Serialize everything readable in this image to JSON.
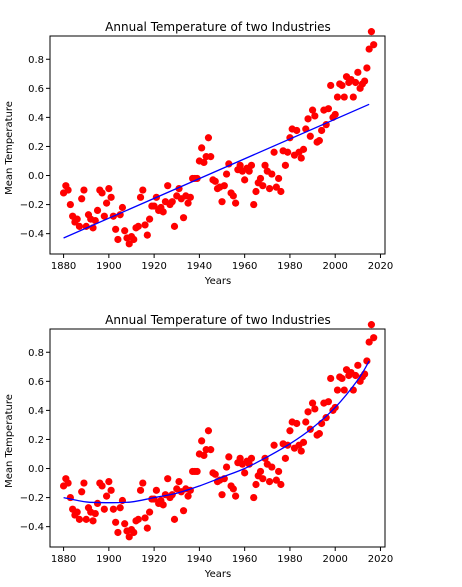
{
  "figure": {
    "background": "#ffffff"
  },
  "chart_data": [
    {
      "type": "scatter",
      "title": "Annual Temperature of two Industries",
      "xlabel": "Years",
      "ylabel": "Mean Temperature",
      "xlim": [
        1874,
        2022
      ],
      "ylim": [
        -0.54,
        0.96
      ],
      "xticks": [
        1880,
        1900,
        1920,
        1940,
        1960,
        1980,
        2000,
        2020
      ],
      "yticks": [
        -0.4,
        -0.2,
        0.0,
        0.2,
        0.4,
        0.6,
        0.8
      ],
      "ytick_labels": [
        "−0.4",
        "−0.2",
        "0.0",
        "0.2",
        "0.4",
        "0.6",
        "0.8"
      ],
      "grid": false,
      "points_color": "#ff0000",
      "fit_color": "#0000ff",
      "fit": {
        "kind": "linear",
        "x": [
          1880,
          2015
        ],
        "y": [
          -0.43,
          0.49
        ]
      }
    },
    {
      "type": "scatter",
      "title": "Annual Temperature of two Industries",
      "xlabel": "Years",
      "ylabel": "Mean Temperature",
      "xlim": [
        1874,
        2022
      ],
      "ylim": [
        -0.54,
        0.96
      ],
      "xticks": [
        1880,
        1900,
        1920,
        1940,
        1960,
        1980,
        2000,
        2020
      ],
      "yticks": [
        -0.4,
        -0.2,
        0.0,
        0.2,
        0.4,
        0.6,
        0.8
      ],
      "ytick_labels": [
        "−0.4",
        "−0.2",
        "0.0",
        "0.2",
        "0.4",
        "0.6",
        "0.8"
      ],
      "grid": false,
      "points_color": "#ff0000",
      "fit_color": "#0000ff",
      "fit": {
        "kind": "polynomial",
        "x": [
          1880,
          1890,
          1900,
          1910,
          1920,
          1930,
          1940,
          1950,
          1960,
          1970,
          1980,
          1990,
          2000,
          2010,
          2015
        ],
        "y": [
          -0.2,
          -0.23,
          -0.235,
          -0.23,
          -0.2,
          -0.17,
          -0.12,
          -0.06,
          0.0,
          0.08,
          0.17,
          0.28,
          0.42,
          0.61,
          0.74
        ]
      }
    }
  ],
  "temperature_points": {
    "x": [
      1880,
      1881,
      1882,
      1883,
      1884,
      1885,
      1886,
      1887,
      1888,
      1889,
      1890,
      1891,
      1892,
      1893,
      1894,
      1895,
      1896,
      1897,
      1898,
      1899,
      1900,
      1901,
      1902,
      1903,
      1904,
      1905,
      1906,
      1907,
      1908,
      1909,
      1910,
      1911,
      1912,
      1913,
      1914,
      1915,
      1916,
      1917,
      1918,
      1919,
      1920,
      1921,
      1922,
      1923,
      1924,
      1925,
      1926,
      1927,
      1928,
      1929,
      1930,
      1931,
      1932,
      1933,
      1934,
      1935,
      1936,
      1937,
      1938,
      1939,
      1940,
      1941,
      1942,
      1943,
      1944,
      1945,
      1946,
      1947,
      1948,
      1949,
      1950,
      1951,
      1952,
      1953,
      1954,
      1955,
      1956,
      1957,
      1958,
      1959,
      1960,
      1961,
      1962,
      1963,
      1964,
      1965,
      1966,
      1967,
      1968,
      1969,
      1970,
      1971,
      1972,
      1973,
      1974,
      1975,
      1976,
      1977,
      1978,
      1979,
      1980,
      1981,
      1982,
      1983,
      1984,
      1985,
      1986,
      1987,
      1988,
      1989,
      1990,
      1991,
      1992,
      1993,
      1994,
      1995,
      1996,
      1997,
      1998,
      1999,
      2000,
      2001,
      2002,
      2003,
      2004,
      2005,
      2006,
      2007,
      2008,
      2009,
      2010,
      2011,
      2012,
      2013,
      2014,
      2015,
      2016,
      2017
    ],
    "y": [
      -0.12,
      -0.07,
      -0.1,
      -0.2,
      -0.28,
      -0.32,
      -0.3,
      -0.35,
      -0.16,
      -0.1,
      -0.35,
      -0.27,
      -0.3,
      -0.36,
      -0.31,
      -0.24,
      -0.1,
      -0.12,
      -0.28,
      -0.19,
      -0.09,
      -0.15,
      -0.28,
      -0.37,
      -0.44,
      -0.27,
      -0.22,
      -0.38,
      -0.43,
      -0.47,
      -0.42,
      -0.44,
      -0.36,
      -0.35,
      -0.15,
      -0.1,
      -0.34,
      -0.41,
      -0.3,
      -0.21,
      -0.21,
      -0.15,
      -0.24,
      -0.22,
      -0.25,
      -0.18,
      -0.07,
      -0.2,
      -0.18,
      -0.35,
      -0.14,
      -0.09,
      -0.16,
      -0.29,
      -0.14,
      -0.19,
      -0.15,
      -0.02,
      -0.02,
      -0.02,
      0.1,
      0.19,
      0.09,
      0.13,
      0.26,
      0.13,
      -0.03,
      -0.04,
      -0.09,
      -0.08,
      -0.18,
      -0.07,
      0.01,
      0.08,
      -0.12,
      -0.14,
      -0.19,
      0.04,
      0.07,
      0.03,
      -0.03,
      0.05,
      0.03,
      0.07,
      -0.2,
      -0.11,
      -0.05,
      -0.02,
      -0.07,
      0.07,
      0.03,
      -0.09,
      0.01,
      0.16,
      -0.08,
      -0.02,
      -0.11,
      0.17,
      0.07,
      0.16,
      0.26,
      0.32,
      0.14,
      0.31,
      0.16,
      0.12,
      0.18,
      0.32,
      0.39,
      0.27,
      0.45,
      0.41,
      0.23,
      0.24,
      0.31,
      0.45,
      0.35,
      0.46,
      0.62,
      0.4,
      0.42,
      0.54,
      0.63,
      0.62,
      0.54,
      0.68,
      0.64,
      0.66,
      0.54,
      0.64,
      0.71,
      0.6,
      0.63,
      0.65,
      0.74,
      0.87,
      0.99,
      0.9
    ]
  }
}
